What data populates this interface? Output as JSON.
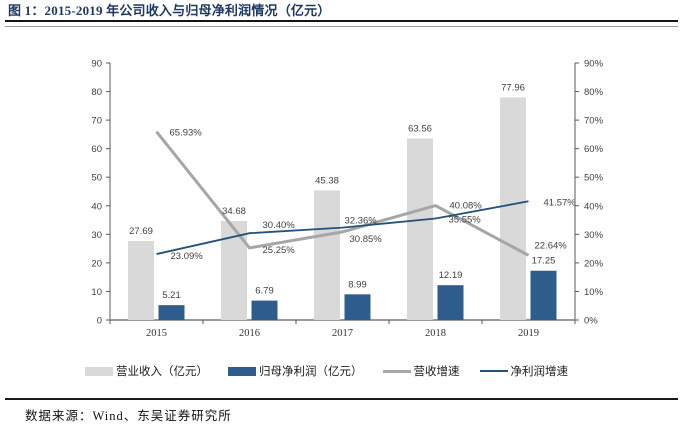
{
  "page": {
    "title": "图 1：2015-2019 年公司收入与归母净利润情况（亿元）",
    "source": "数据来源：Wind、东吴证券研究所"
  },
  "colors": {
    "revenue_bar": "#D9D9D9",
    "profit_bar": "#2E5C8C",
    "revenue_growth_line": "#A6A6A6",
    "profit_growth_line": "#24527F",
    "title_text": "#1F3864",
    "data_label_text": "#404040",
    "axis_line": "#595959",
    "baseline": "#999999"
  },
  "chart_data": {
    "type": "combo-bar-line",
    "title": "2015-2019 年公司收入与归母净利润情况（亿元）",
    "categories": [
      "2015",
      "2016",
      "2017",
      "2018",
      "2019"
    ],
    "series": [
      {
        "name": "营业收入（亿元）",
        "type": "bar",
        "axis": "left",
        "values": [
          27.69,
          34.68,
          45.38,
          63.56,
          77.96
        ]
      },
      {
        "name": "归母净利润（亿元）",
        "type": "bar",
        "axis": "left",
        "values": [
          5.21,
          6.79,
          8.99,
          12.19,
          17.25
        ]
      },
      {
        "name": "营收增速",
        "type": "line",
        "axis": "right",
        "unit": "%",
        "values": [
          65.93,
          25.25,
          30.85,
          40.08,
          22.64
        ]
      },
      {
        "name": "净利润增速",
        "type": "line",
        "axis": "right",
        "unit": "%",
        "values": [
          23.09,
          30.4,
          32.36,
          35.55,
          41.57
        ]
      }
    ],
    "left_axis": {
      "min": 0,
      "max": 90,
      "step": 10,
      "suffix": ""
    },
    "right_axis": {
      "min": 0,
      "max": 90,
      "step": 10,
      "suffix": "%"
    },
    "grid": false,
    "data_labels": true,
    "legend_position": "bottom"
  },
  "legend": {
    "items": [
      {
        "label": "营业收入（亿元）",
        "swatch": "bar",
        "color": "#D9D9D9"
      },
      {
        "label": "归母净利润（亿元）",
        "swatch": "bar",
        "color": "#2E5C8C"
      },
      {
        "label": "营收增速",
        "swatch": "line",
        "color": "#A6A6A6",
        "thickness": 3
      },
      {
        "label": "净利润增速",
        "swatch": "line",
        "color": "#24527F",
        "thickness": 2
      }
    ]
  }
}
